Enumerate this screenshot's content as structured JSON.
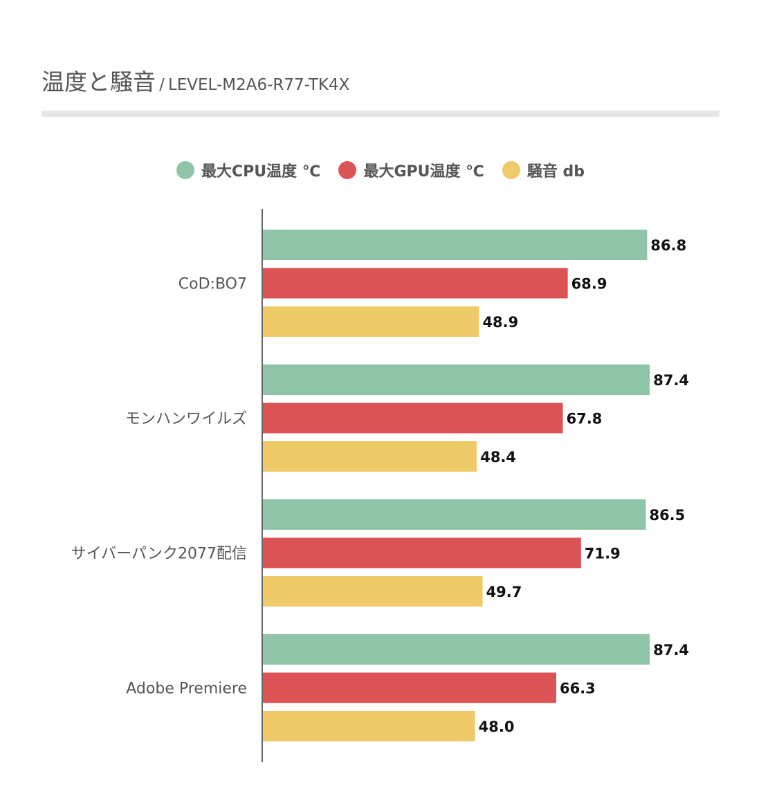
{
  "title": {
    "main": "温度と騒音",
    "separator": "/",
    "sub": "LEVEL-M2A6-R77-TK4X"
  },
  "chart_data": {
    "type": "bar",
    "orientation": "horizontal",
    "categories": [
      "CoD:BO7",
      "モンハンワイルズ",
      "サイバーパンク2077配信",
      "Adobe Premiere"
    ],
    "series": [
      {
        "name": "最大CPU温度 ℃",
        "color": "#8fc4a9",
        "values": [
          86.8,
          87.4,
          86.5,
          87.4
        ]
      },
      {
        "name": "最大GPU温度 ℃",
        "color": "#dc5355",
        "values": [
          68.9,
          67.8,
          71.9,
          66.3
        ]
      },
      {
        "name": "騒音 db",
        "color": "#efca69",
        "values": [
          48.9,
          48.4,
          49.7,
          48.0
        ]
      }
    ],
    "xlim": [
      0,
      100
    ],
    "grid": false,
    "legend": "top-center",
    "data_labels": true
  }
}
